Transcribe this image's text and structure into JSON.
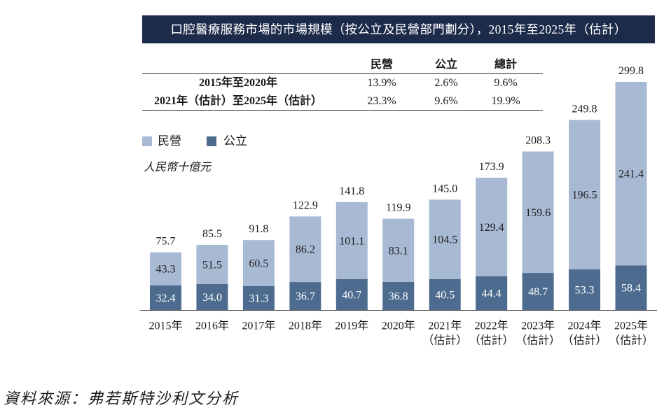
{
  "colors": {
    "title_bar": "#1d2b4b",
    "title_text": "#ffffff",
    "text": "#1a1a1a",
    "axis": "#3a3a3a"
  },
  "chart_data": {
    "type": "bar",
    "stacked": true,
    "title": "口腔醫療服務市場的市場規模（按公立及民營部門劃分），2015年至2025年（估計）",
    "xlabel": "",
    "ylabel": "人民幣十億元",
    "legend_position": "top-left",
    "categories": [
      "2015年",
      "2016年",
      "2017年",
      "2018年",
      "2019年",
      "2020年",
      "2021年",
      "2022年",
      "2023年",
      "2024年",
      "2025年"
    ],
    "category_sublabels": [
      "",
      "",
      "",
      "",
      "",
      "",
      "（估計）",
      "（估計）",
      "（估計）",
      "（估計）",
      "（估計）"
    ],
    "series": [
      {
        "name": "民營",
        "color": "#a8b9d4",
        "label_color": "#1f1f1f",
        "values": [
          43.3,
          51.5,
          60.5,
          86.2,
          101.1,
          83.1,
          104.5,
          129.4,
          159.6,
          196.5,
          241.4
        ]
      },
      {
        "name": "公立",
        "color": "#4d6b8f",
        "label_color": "#ffffff",
        "values": [
          32.4,
          34.0,
          31.3,
          36.7,
          40.7,
          36.8,
          40.5,
          44.4,
          48.7,
          53.3,
          58.4
        ]
      }
    ],
    "totals": [
      75.7,
      85.5,
      91.8,
      122.9,
      141.8,
      119.9,
      145.0,
      173.9,
      208.3,
      249.8,
      299.8
    ]
  },
  "cagr_table": {
    "headers": [
      "民營",
      "公立",
      "總計"
    ],
    "rows": [
      {
        "label": "2015年至2020年",
        "values": [
          "13.9%",
          "2.6%",
          "9.6%"
        ]
      },
      {
        "label": "2021年（估計）至2025年（估計）",
        "values": [
          "23.3%",
          "9.6%",
          "19.9%"
        ]
      }
    ]
  },
  "source": "資料來源：弗若斯特沙利文分析"
}
